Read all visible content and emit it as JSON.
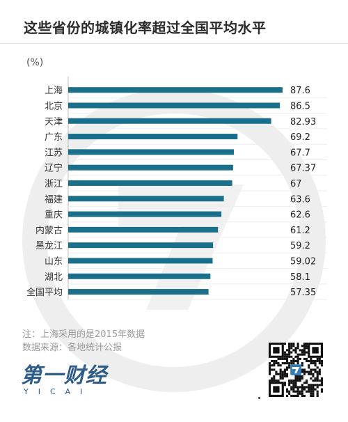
{
  "title": "这些省份的城镇化率超过全国平均水平",
  "unit": "(%)",
  "notes": {
    "line1": "注：上海采用的是2015年数据",
    "line2": "数据来源：各地统计公报"
  },
  "logo": {
    "cn": "第一财经",
    "en": "YICAI"
  },
  "chart_data": {
    "type": "bar",
    "orientation": "horizontal",
    "title": "这些省份的城镇化率超过全国平均水平",
    "unit": "(%)",
    "categories": [
      "上海",
      "北京",
      "天津",
      "广东",
      "江苏",
      "辽宁",
      "浙江",
      "福建",
      "重庆",
      "内蒙古",
      "黑龙江",
      "山东",
      "湖北",
      "全国平均"
    ],
    "values": [
      87.6,
      86.5,
      82.93,
      69.2,
      67.7,
      67.37,
      67,
      63.6,
      62.6,
      61.2,
      59.2,
      59.02,
      58.1,
      57.35
    ],
    "value_labels": [
      "87.6",
      "86.5",
      "82.93",
      "69.2",
      "67.7",
      "67.37",
      "67",
      "63.6",
      "62.6",
      "61.2",
      "59.2",
      "59.02",
      "58.1",
      "57.35"
    ],
    "xlim": [
      0,
      87.6
    ],
    "bar_color": "#1a6f8a",
    "grid": true
  }
}
